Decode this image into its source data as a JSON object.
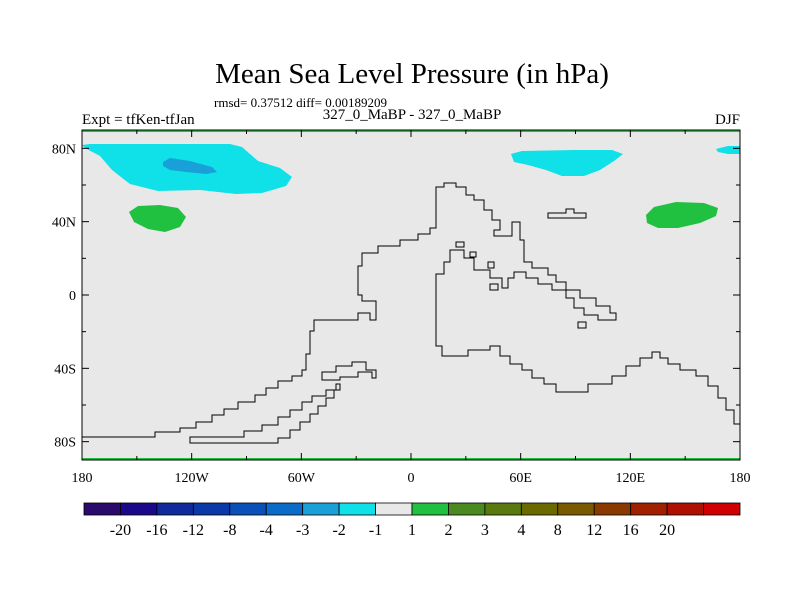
{
  "chart_data": {
    "type": "heatmap",
    "title": "Mean Sea Level Pressure (in hPa)",
    "stats_text": "rmsd= 0.37512 diff= 0.00189209",
    "expt_label": "Expt = tfKen-tfJan",
    "comparison_label": "327_0_MaBP - 327_0_MaBP",
    "season_label": "DJF",
    "x_ticks": [
      "180",
      "120W",
      "60W",
      "0",
      "60E",
      "120E",
      "180"
    ],
    "y_ticks": [
      "80N",
      "40N",
      "0",
      "40S",
      "80S"
    ],
    "xlim": [
      -180,
      180
    ],
    "ylim": [
      -90,
      90
    ],
    "colorbar": {
      "colors": [
        "#2a0a6b",
        "#1a0a8a",
        "#102a9c",
        "#0a3aa8",
        "#0a50b8",
        "#0a6cc8",
        "#1aa0d8",
        "#10e0e8",
        "#e8e8e8",
        "#20c040",
        "#4a8a20",
        "#5a7a10",
        "#6a6a00",
        "#7a5a00",
        "#8a3a00",
        "#a02000",
        "#b01000",
        "#d00000"
      ],
      "labels": [
        "-20",
        "-16",
        "-12",
        "-8",
        "-4",
        "-3",
        "-2",
        "-1",
        "1",
        "2",
        "3",
        "4",
        "8",
        "12",
        "16",
        "20"
      ]
    },
    "anomaly_regions": [
      {
        "name": "arctic-pacific-low",
        "level": "-2",
        "lon": [
          -180,
          -60
        ],
        "lat": [
          62,
          86
        ],
        "color": "#10e0e8"
      },
      {
        "name": "arctic-pacific-core",
        "level": "-3",
        "lon": [
          -140,
          -120
        ],
        "lat": [
          70,
          78
        ],
        "color": "#1aa0d8"
      },
      {
        "name": "arctic-atlantic-low",
        "level": "-2",
        "lon": [
          55,
          120
        ],
        "lat": [
          65,
          84
        ],
        "color": "#10e0e8"
      },
      {
        "name": "arctic-east-low",
        "level": "-2",
        "lon": [
          165,
          180
        ],
        "lat": [
          78,
          84
        ],
        "color": "#10e0e8"
      },
      {
        "name": "pacific-high",
        "level": "2",
        "lon": [
          -160,
          -130
        ],
        "lat": [
          35,
          50
        ],
        "color": "#20c040"
      },
      {
        "name": "east-pacific-high",
        "level": "2",
        "lon": [
          128,
          170
        ],
        "lat": [
          38,
          52
        ],
        "color": "#20c040"
      }
    ]
  }
}
